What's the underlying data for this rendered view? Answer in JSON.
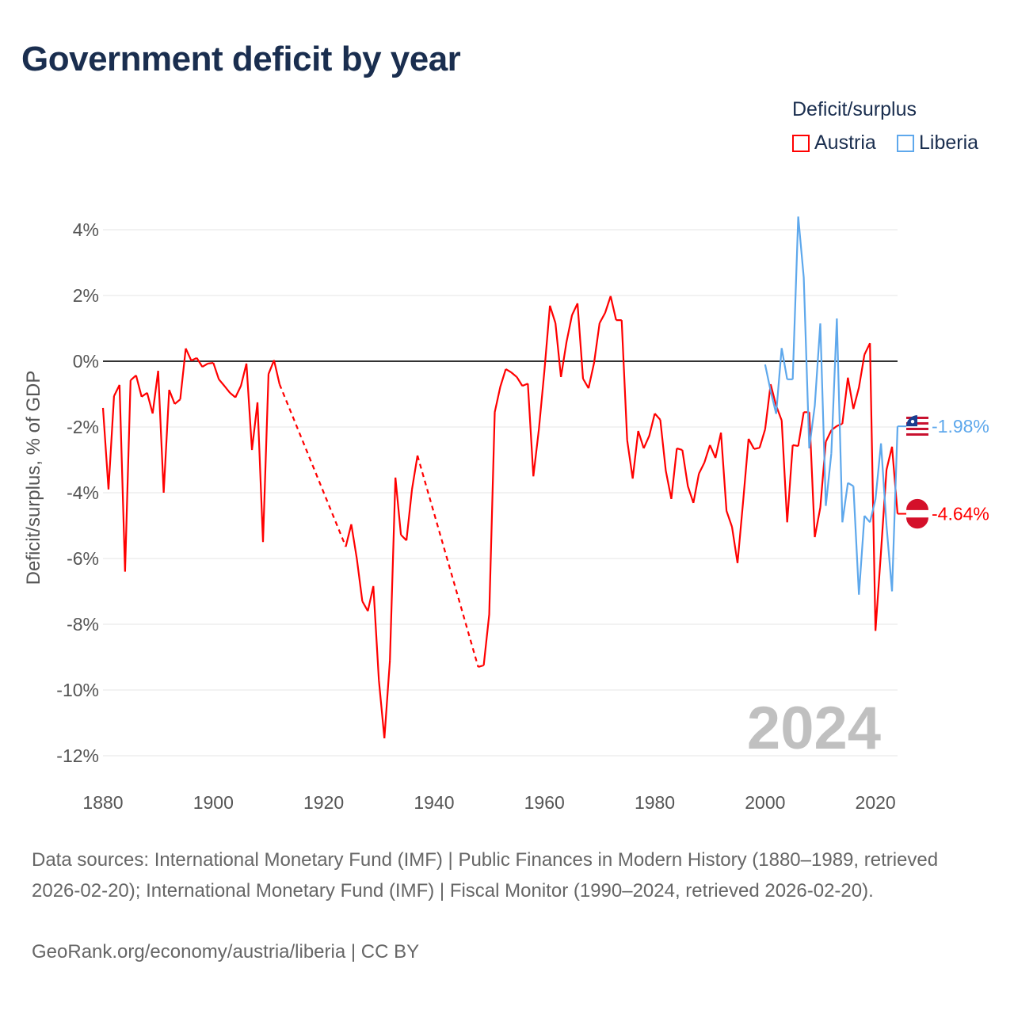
{
  "title": "Government deficit by year",
  "legend": {
    "title": "Deficit/surplus",
    "items": [
      {
        "label": "Austria",
        "color": "#ff0000"
      },
      {
        "label": "Liberia",
        "color": "#5ea8ec"
      }
    ]
  },
  "year_label": "2024",
  "footer": {
    "sources": "Data sources: International Monetary Fund (IMF) | Public Finances in Modern History (1880–1989, retrieved 2026-02-20); International Monetary Fund (IMF) | Fiscal Monitor (1990–2024, retrieved 2026-02-20).",
    "credit": "GeoRank.org/economy/austria/liberia | CC BY"
  },
  "chart_data": {
    "type": "line",
    "title": "Government deficit by year",
    "ylabel": "Deficit/surplus, % of GDP",
    "xlabel": "",
    "xlim": [
      1880,
      2024
    ],
    "ylim": [
      -12,
      4
    ],
    "x_ticks": [
      "1880",
      "1900",
      "1920",
      "1940",
      "1960",
      "1980",
      "2000",
      "2020"
    ],
    "y_ticks": [
      "4%",
      "2%",
      "0%",
      "-2%",
      "-4%",
      "-6%",
      "-8%",
      "-10%",
      "-12%"
    ],
    "grid": true,
    "legend_position": "top-right",
    "end_labels": {
      "Austria": "-4.64%",
      "Liberia": "-1.98%"
    },
    "series": [
      {
        "name": "Austria",
        "color": "#ff0000",
        "start_year": 1880,
        "values": [
          -1.42,
          -3.9,
          -1.06,
          -0.72,
          -6.4,
          -0.58,
          -0.43,
          -1.08,
          -0.96,
          -1.59,
          -0.29,
          -4.0,
          -0.87,
          -1.3,
          -1.16,
          0.39,
          0.02,
          0.1,
          -0.17,
          -0.07,
          -0.05,
          -0.55,
          -0.75,
          -0.96,
          -1.1,
          -0.75,
          -0.07,
          -2.7,
          -1.25,
          -5.5,
          -0.39,
          0.03,
          -0.7,
          null,
          null,
          null,
          null,
          null,
          null,
          null,
          null,
          null,
          null,
          null,
          -5.64,
          -4.96,
          -6.0,
          -7.3,
          -7.6,
          -6.84,
          -9.7,
          -11.47,
          -9.1,
          -3.54,
          -5.28,
          -5.45,
          -3.9,
          -2.87,
          null,
          null,
          null,
          null,
          null,
          null,
          null,
          null,
          null,
          null,
          -9.3,
          -9.25,
          -7.7,
          -1.55,
          -0.78,
          -0.24,
          -0.34,
          -0.48,
          -0.75,
          -0.68,
          -3.5,
          -2.07,
          -0.29,
          1.69,
          1.16,
          -0.48,
          0.58,
          1.4,
          1.76,
          -0.53,
          -0.82,
          -0.05,
          1.16,
          1.47,
          1.98,
          1.25,
          1.25,
          -2.4,
          -3.57,
          -2.12,
          -2.65,
          -2.27,
          -1.59,
          -1.78,
          -3.33,
          -4.19,
          -2.65,
          -2.7,
          -3.8,
          -4.31,
          -3.42,
          -3.08,
          -2.55,
          -2.94,
          -2.17,
          -4.55,
          -5.04,
          -6.14,
          -4.29,
          -2.36,
          -2.67,
          -2.63,
          -2.07,
          -0.7,
          -1.35,
          -1.8,
          -4.9,
          -2.55,
          -2.58,
          -1.55,
          -1.55,
          -5.35,
          -4.45,
          -2.45,
          -2.1,
          -1.97,
          -1.9,
          -0.5,
          -1.45,
          -0.8,
          0.2,
          0.55,
          -8.2,
          -5.8,
          -3.3,
          -2.6,
          -4.64
        ]
      },
      {
        "name": "Liberia",
        "color": "#5ea8ec",
        "start_year": 2000,
        "values": [
          -0.1,
          -0.9,
          -1.6,
          0.4,
          -0.55,
          -0.55,
          4.4,
          2.55,
          -2.65,
          -1.35,
          1.15,
          -4.4,
          -2.8,
          1.3,
          -4.9,
          -3.7,
          -3.8,
          -7.1,
          -4.7,
          -4.9,
          -4.2,
          -2.5,
          -5.0,
          -7.0,
          -1.98
        ]
      }
    ]
  }
}
